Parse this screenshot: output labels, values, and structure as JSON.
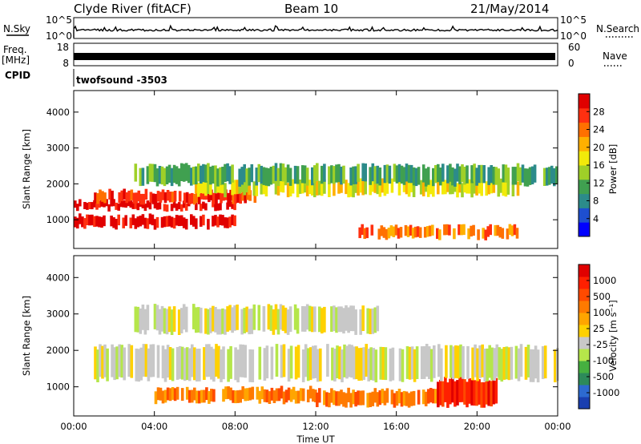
{
  "header": {
    "station": "Clyde River (fitACF)",
    "beam": "Beam 10",
    "date": "21/May/2014"
  },
  "top_strip": {
    "nsky_label": "N.Sky",
    "nsky_ticks": [
      "10^5",
      "10^0"
    ],
    "nsearch_label": "N.Search",
    "nsearch_ticks": [
      "10^5",
      "10^0"
    ],
    "freq_label_line1": "Freq.",
    "freq_label_line2": "[MHz]",
    "freq_ticks": [
      "18",
      "8"
    ],
    "nave_label": "Nave",
    "nave_ticks": [
      "60",
      "0"
    ],
    "cpid_label": "CPID",
    "cpid_value": "twofsound -3503"
  },
  "x_axis": {
    "label": "Time UT",
    "ticks": [
      "00:00",
      "04:00",
      "08:00",
      "12:00",
      "16:00",
      "20:00",
      "00:00"
    ]
  },
  "chart_data": [
    {
      "type": "heatmap",
      "name": "power",
      "ylabel": "Slant Range [km]",
      "yticks": [
        1000,
        2000,
        3000,
        4000
      ],
      "ylim": [
        200,
        4600
      ],
      "xlim_hours": [
        0,
        24
      ],
      "colorbar_label": "Power [dB]",
      "colorbar_ticks": [
        "28",
        "24",
        "20",
        "16",
        "12",
        "8",
        "4"
      ],
      "colorbar_colors": [
        "#0000ff",
        "#1e4fd0",
        "#2c8b8a",
        "#40a050",
        "#9fd028",
        "#f2ea0a",
        "#ffb000",
        "#ff7000",
        "#ff3010",
        "#e00000"
      ],
      "bands": [
        {
          "level": 9,
          "ranges": [
            [
              800,
              1100
            ],
            [
              1300,
              1500
            ]
          ],
          "hours": [
            0,
            8
          ]
        },
        {
          "level": 8,
          "ranges": [
            [
              1500,
              1800
            ]
          ],
          "hours": [
            1,
            9
          ]
        },
        {
          "level": 7,
          "ranges": [
            [
              500,
              800
            ]
          ],
          "hours": [
            14,
            22
          ]
        },
        {
          "level": 5,
          "ranges": [
            [
              1700,
              2100
            ]
          ],
          "hours": [
            6,
            22
          ]
        },
        {
          "level": 3,
          "ranges": [
            [
              2000,
              2500
            ]
          ],
          "hours": [
            3,
            24
          ]
        }
      ]
    },
    {
      "type": "heatmap",
      "name": "velocity",
      "ylabel": "Slant Range [km]",
      "yticks": [
        1000,
        2000,
        3000,
        4000
      ],
      "ylim": [
        200,
        4600
      ],
      "xlim_hours": [
        0,
        24
      ],
      "colorbar_label": "Velocity [m s⁻¹]",
      "colorbar_ticks": [
        "1000",
        "500",
        "100",
        "25",
        "-25",
        "-100",
        "-500",
        "-1000"
      ],
      "colorbar_colors": [
        "#1a3fb0",
        "#2d6ad0",
        "#2d8a5a",
        "#46b040",
        "#b5e64a",
        "#c8c8c8",
        "#ffd100",
        "#ffa500",
        "#ff7a00",
        "#ff4a00",
        "#ff2000",
        "#e00000"
      ],
      "bands": [
        {
          "level": 8,
          "ranges": [
            [
              600,
              950
            ]
          ],
          "hours": [
            4,
            12
          ]
        },
        {
          "level": 8,
          "ranges": [
            [
              500,
              900
            ]
          ],
          "hours": [
            12,
            18
          ]
        },
        {
          "level": 10,
          "ranges": [
            [
              500,
              1200
            ]
          ],
          "hours": [
            18,
            21
          ]
        },
        {
          "level": 5,
          "ranges": [
            [
              1200,
              2100
            ]
          ],
          "hours": [
            1,
            24
          ]
        },
        {
          "level": 5,
          "ranges": [
            [
              2500,
              3200
            ]
          ],
          "hours": [
            3,
            15
          ]
        }
      ]
    }
  ]
}
